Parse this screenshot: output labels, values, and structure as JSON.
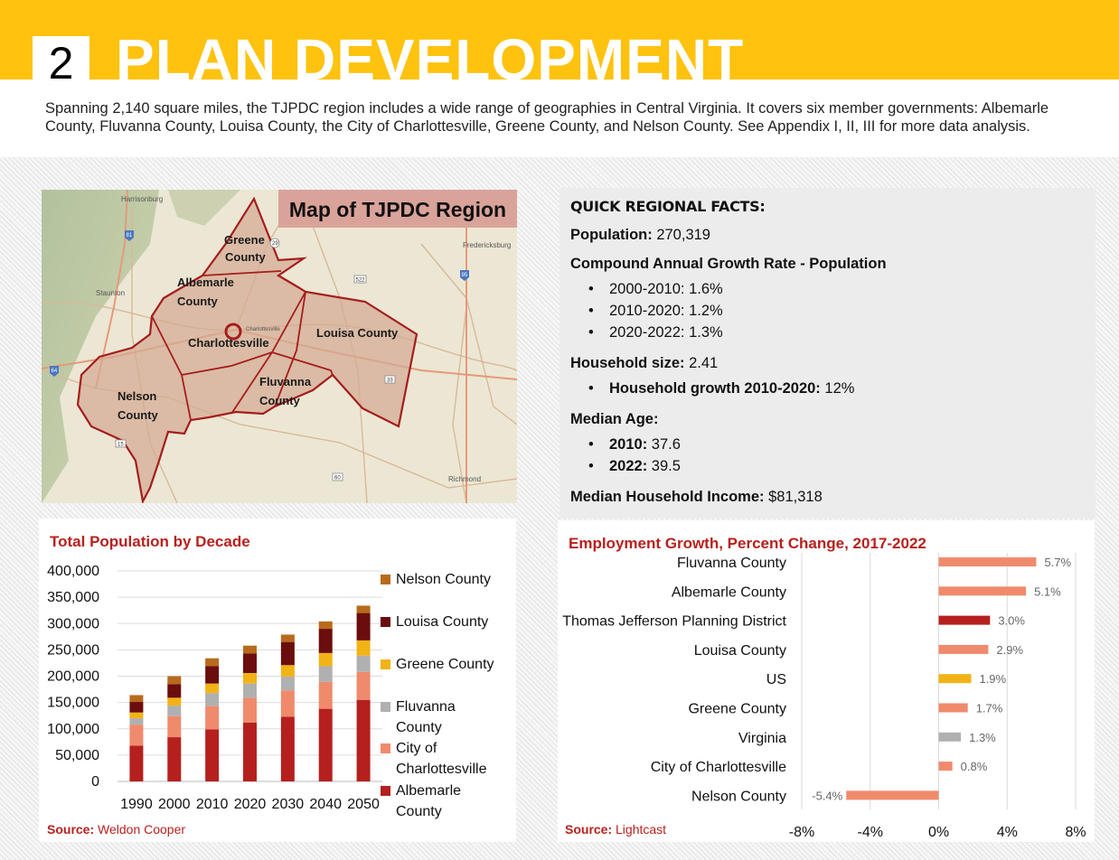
{
  "header": {
    "chapter_number": "2",
    "chapter_title": "PLAN DEVELOPMENT",
    "intro": "Spanning 2,140 square miles, the TJPDC region includes a wide range of geographies in Central Virginia. It covers six member governments: Albemarle County, Fluvanna County, Louisa County, the City of Charlottesville, Greene County, and Nelson County. See Appendix I, II, III for more data analysis."
  },
  "map": {
    "title": "Map of TJPDC Region",
    "places": {
      "harrisonburg": "Harrisonburg",
      "fredericksburg": "Fredericksburg",
      "staunton": "Staunton",
      "richmond": "Richmond",
      "charlottesville_small": "Charlottesville"
    },
    "counties": {
      "greene_1": "Greene",
      "greene_2": "County",
      "albemarle_1": "Albemarle",
      "albemarle_2": "County",
      "charlottesville": "Charlottesville",
      "louisa": "Louisa County",
      "fluvanna_1": "Fluvanna",
      "fluvanna_2": "County",
      "nelson_1": "Nelson",
      "nelson_2": "County"
    },
    "shields": {
      "s81": "81",
      "s29": "29",
      "s522": "522",
      "s95": "95",
      "s64": "64",
      "s33": "33",
      "s60": "60",
      "s15": "15"
    },
    "colors": {
      "region_fill": "#d4ab93",
      "boundary": "#a51d1d"
    }
  },
  "facts": {
    "heading": "QUICK REGIONAL FACTS:",
    "population_label": "Population:",
    "population_value": "270,319",
    "cagr_label": "Compound Annual Growth Rate - Population",
    "cagr_items": [
      "2000-2010: 1.6%",
      "2010-2020: 1.2%",
      "2020-2022: 1.3%"
    ],
    "household_label": "Household size:",
    "household_value": "2.41",
    "household_growth_label": "Household growth 2010-2020:",
    "household_growth_value": "12%",
    "median_age_label": "Median Age:",
    "age_2010_label": "2010:",
    "age_2010_value": "37.6",
    "age_2022_label": "2022:",
    "age_2022_value": "39.5",
    "income_label": "Median Household Income:",
    "income_value": "$81,318"
  },
  "chart_data": [
    {
      "type": "bar",
      "stacked": true,
      "title": "Total Population by Decade",
      "categories": [
        "1990",
        "2000",
        "2010",
        "2020",
        "2030",
        "2040",
        "2050"
      ],
      "series": [
        {
          "name": "Albemarle County",
          "color": "#b5201e",
          "values": [
            68000,
            84000,
            99000,
            112000,
            123000,
            138000,
            155000
          ]
        },
        {
          "name": "City of Charlottesville",
          "color": "#f08a6c",
          "values": [
            40000,
            40000,
            44000,
            47000,
            50000,
            51000,
            53000
          ]
        },
        {
          "name": "Fluvanna County",
          "color": "#b0b0b0",
          "values": [
            12000,
            20000,
            25000,
            27000,
            26000,
            30000,
            31000
          ]
        },
        {
          "name": "Greene County",
          "color": "#f2b316",
          "values": [
            11000,
            15000,
            18000,
            20000,
            22000,
            25000,
            29000
          ]
        },
        {
          "name": "Louisa County",
          "color": "#6b0d0d",
          "values": [
            20000,
            26000,
            33000,
            37000,
            44000,
            46000,
            52000
          ]
        },
        {
          "name": "Nelson County",
          "color": "#b86a1c",
          "values": [
            13000,
            15000,
            15000,
            15000,
            14000,
            14000,
            14000
          ]
        }
      ],
      "yticks": [
        "400,000",
        "350,000",
        "300,000",
        "250,000",
        "200,000",
        "150,000",
        "100,000",
        "50,000",
        "0"
      ],
      "ylim": [
        0,
        400000
      ],
      "grid": true,
      "legend": "right",
      "source_label": "Source:",
      "source_value": "Weldon Cooper"
    },
    {
      "type": "bar",
      "orientation": "horizontal",
      "title": "Employment Growth, Percent Change, 2017-2022",
      "categories": [
        "Fluvanna County",
        "Albemarle County",
        "Thomas Jefferson Planning District",
        "Louisa County",
        "US",
        "Greene County",
        "Virginia",
        "City of Charlottesville",
        "Nelson County"
      ],
      "values": [
        5.7,
        5.1,
        3.0,
        2.9,
        1.9,
        1.7,
        1.3,
        0.8,
        -5.4
      ],
      "value_labels": [
        "5.7%",
        "5.1%",
        "3.0%",
        "2.9%",
        "1.9%",
        "1.7%",
        "1.3%",
        "0.8%",
        "-5.4%"
      ],
      "colors": [
        "#f08a6c",
        "#f08a6c",
        "#b5201e",
        "#f08a6c",
        "#f2b316",
        "#f08a6c",
        "#b0b0b0",
        "#f08a6c",
        "#f08a6c"
      ],
      "xlim": [
        -8,
        8
      ],
      "xticks": [
        "-8%",
        "-4%",
        "0%",
        "4%",
        "8%"
      ],
      "source_label": "Source:",
      "source_value": "Lightcast"
    }
  ]
}
